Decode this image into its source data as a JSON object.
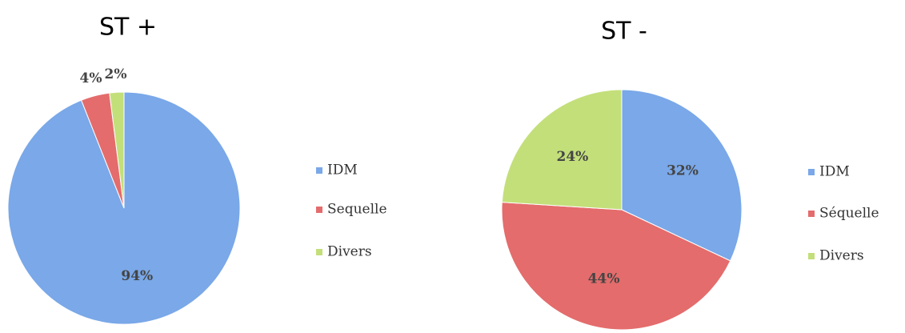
{
  "chart_data": [
    {
      "type": "pie",
      "title": "ST +",
      "categories": [
        "IDM",
        "Sequelle",
        "Divers"
      ],
      "values": [
        94,
        4,
        2
      ],
      "value_labels": [
        "94%",
        "4%",
        "2%"
      ],
      "colors": [
        "#7aa8e8",
        "#e46c6c",
        "#c3df7a"
      ]
    },
    {
      "type": "pie",
      "title": "ST -",
      "categories": [
        "IDM",
        "Séquelle",
        "Divers"
      ],
      "values": [
        32,
        44,
        24
      ],
      "value_labels": [
        "32%",
        "44%",
        "24%"
      ],
      "colors": [
        "#7aa8e8",
        "#e46c6c",
        "#c3df7a"
      ]
    }
  ]
}
